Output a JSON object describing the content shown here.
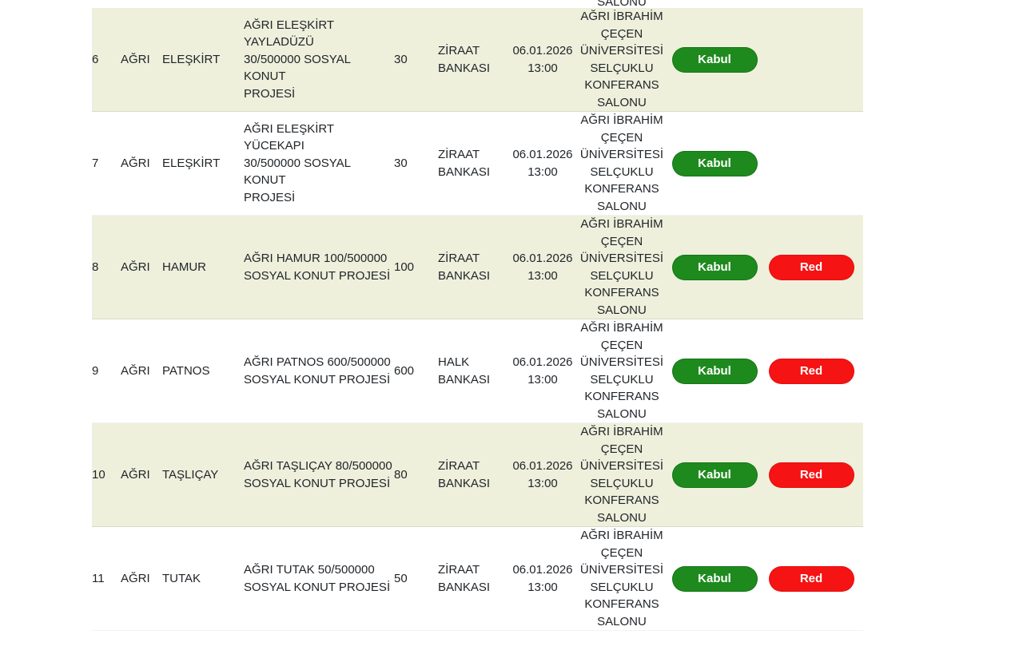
{
  "colors": {
    "stripe_bg": "#eef0dc",
    "row_bg": "#ffffff",
    "accept_green": "#1e8a1e",
    "reject_red": "#f61313",
    "text": "#212529",
    "button_text": "#ffffff"
  },
  "buttons": {
    "accept_label": "Kabul",
    "reject_label": "Red"
  },
  "table": {
    "previous_row_fragment": {
      "location_last_line": "SALONU"
    },
    "rows": [
      {
        "no": "6",
        "province": "AĞRI",
        "district": "ELEŞKİRT",
        "project": "AĞRI ELEŞKİRT YAYLADÜZÜ\n30/500000 SOSYAL KONUT\nPROJESİ",
        "count": "30",
        "bank": "ZİRAAT BANKASI",
        "date": "06.01.2026",
        "time": "13:00",
        "location": "AĞRI İBRAHİM\nÇEÇEN\nÜNİVERSİTESİ\nSELÇUKLU\nKONFERANS\nSALONU",
        "accept_label": "Kabul",
        "reject_label": null,
        "striped": true
      },
      {
        "no": "7",
        "province": "AĞRI",
        "district": "ELEŞKİRT",
        "project": "AĞRI ELEŞKİRT YÜCEKAPI\n30/500000 SOSYAL KONUT\nPROJESİ",
        "count": "30",
        "bank": "ZİRAAT BANKASI",
        "date": "06.01.2026",
        "time": "13:00",
        "location": "AĞRI İBRAHİM\nÇEÇEN\nÜNİVERSİTESİ\nSELÇUKLU\nKONFERANS\nSALONU",
        "accept_label": "Kabul",
        "reject_label": null,
        "striped": false
      },
      {
        "no": "8",
        "province": "AĞRI",
        "district": "HAMUR",
        "project": "AĞRI HAMUR 100/500000\nSOSYAL KONUT PROJESİ",
        "count": "100",
        "bank": "ZİRAAT BANKASI",
        "date": "06.01.2026",
        "time": "13:00",
        "location": "AĞRI İBRAHİM\nÇEÇEN\nÜNİVERSİTESİ\nSELÇUKLU\nKONFERANS\nSALONU",
        "accept_label": "Kabul",
        "reject_label": "Red",
        "striped": true
      },
      {
        "no": "9",
        "province": "AĞRI",
        "district": "PATNOS",
        "project": "AĞRI PATNOS 600/500000\nSOSYAL KONUT PROJESİ",
        "count": "600",
        "bank": "HALK BANKASI",
        "date": "06.01.2026",
        "time": "13:00",
        "location": "AĞRI İBRAHİM\nÇEÇEN\nÜNİVERSİTESİ\nSELÇUKLU\nKONFERANS\nSALONU",
        "accept_label": "Kabul",
        "reject_label": "Red",
        "striped": false
      },
      {
        "no": "10",
        "province": "AĞRI",
        "district": "TAŞLIÇAY",
        "project": "AĞRI TAŞLIÇAY 80/500000\nSOSYAL KONUT PROJESİ",
        "count": "80",
        "bank": "ZİRAAT BANKASI",
        "date": "06.01.2026",
        "time": "13:00",
        "location": "AĞRI İBRAHİM\nÇEÇEN\nÜNİVERSİTESİ\nSELÇUKLU\nKONFERANS\nSALONU",
        "accept_label": "Kabul",
        "reject_label": "Red",
        "striped": true
      },
      {
        "no": "11",
        "province": "AĞRI",
        "district": "TUTAK",
        "project": "AĞRI TUTAK 50/500000\nSOSYAL KONUT PROJESİ",
        "count": "50",
        "bank": "ZİRAAT BANKASI",
        "date": "06.01.2026",
        "time": "13:00",
        "location": "AĞRI İBRAHİM\nÇEÇEN\nÜNİVERSİTESİ\nSELÇUKLU\nKONFERANS\nSALONU",
        "accept_label": "Kabul",
        "reject_label": "Red",
        "striped": false
      }
    ]
  }
}
